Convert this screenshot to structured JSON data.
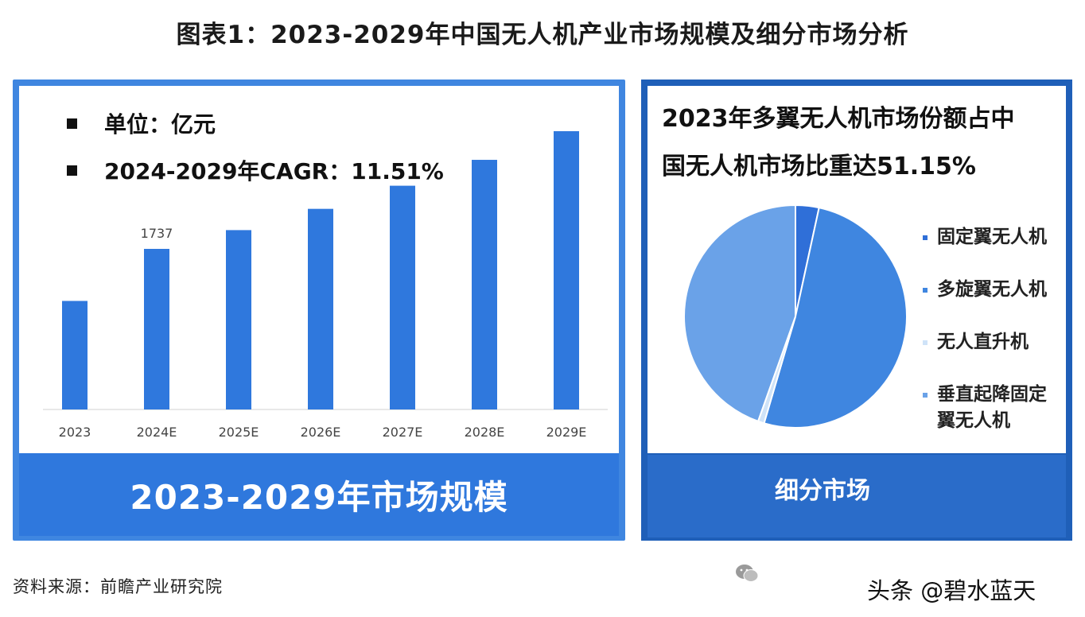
{
  "title": "图表1：2023-2029年中国无人机产业市场规模及细分市场分析",
  "left_panel": {
    "unit": "单位：亿元",
    "cagr": "2024-2029年CAGR：11.51%",
    "footer": "2023-2029年市场规模"
  },
  "right_panel": {
    "title_line1": "2023年多翼无人机市场份额占中",
    "title_line2": "国无人机市场比重达51.15%",
    "footer": "细分市场"
  },
  "source": "资料来源：前瞻产业研究院",
  "watermark": "头条 @碧水蓝天",
  "colors": {
    "bar": "#2f78dd",
    "pie_fixed": "#2f6fd8",
    "pie_multi": "#3f86e0",
    "pie_heli": "#cfe3f8",
    "pie_vtol": "#6aa2e8"
  },
  "chart_data": [
    {
      "type": "bar",
      "categories": [
        "2023",
        "2024E",
        "2025E",
        "2026E",
        "2027E",
        "2028E",
        "2029E"
      ],
      "values": [
        1174,
        1737,
        1940,
        2170,
        2420,
        2700,
        3010
      ],
      "data_labels": [
        "",
        "1737",
        "",
        "",
        "",
        "",
        ""
      ],
      "ylim": [
        0,
        3500
      ],
      "grid": false
    },
    {
      "type": "pie",
      "labels": [
        "固定翼无人机",
        "多旋翼无人机",
        "无人直升机",
        "垂直起降固定翼无人机"
      ],
      "values": [
        3.4,
        51.15,
        0.9,
        44.55
      ],
      "legend": "right"
    }
  ]
}
